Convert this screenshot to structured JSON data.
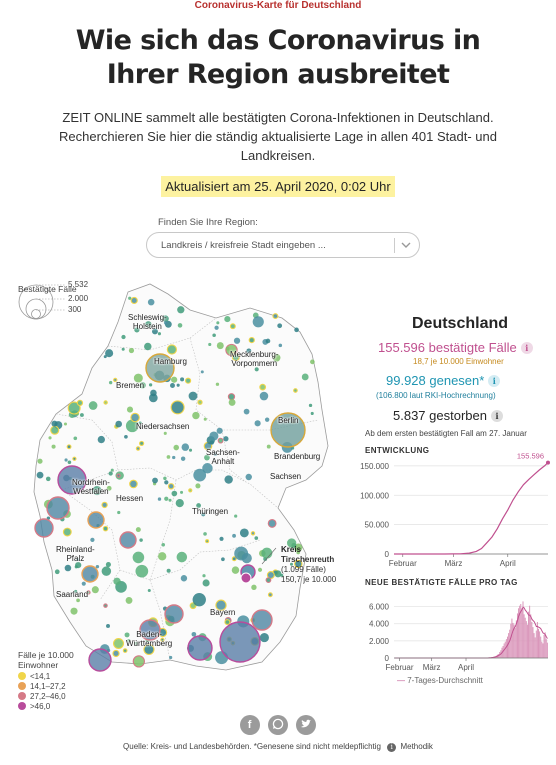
{
  "kicker": "Coronavirus-Karte für Deutschland",
  "headline": "Wie sich das Coronavirus in Ihrer Region ausbreitet",
  "intro": "ZEIT ONLINE sammelt alle bestätigten Corona-Infektionen in Deutschland. Recherchieren Sie hier die ständig aktualisierte Lage in allen 401 Stadt- und Landkreisen.",
  "updated": "Aktualisiert am 25. April 2020, 0:02 Uhr",
  "search": {
    "label": "Finden Sie Ihre Region:",
    "placeholder": "Landkreis / kreisfreie Stadt eingeben ..."
  },
  "legend": {
    "title": "Bestätigte Fälle",
    "sizes": [
      "5.532",
      "2.000",
      "300"
    ],
    "rate_title": "Fälle je 10.000 Einwohner",
    "rates": [
      {
        "label": "<14,1",
        "color": "#f0d54a"
      },
      {
        "label": "14,1–27,2",
        "color": "#e8a257"
      },
      {
        "label": "27,2–46,0",
        "color": "#d57a87"
      },
      {
        "label": ">46,0",
        "color": "#b84c9c"
      }
    ]
  },
  "map_labels": {
    "schleswig": "Schleswig-\nHolstein",
    "hamburg": "Hamburg",
    "mecklenburg": "Mecklenburg-\nVorpommern",
    "bremen": "Bremen",
    "berlin": "Berlin",
    "niedersachsen": "Niedersachsen",
    "sachsen_anhalt": "Sachsen-\nAnhalt",
    "brandenburg": "Brandenburg",
    "nrw": "Nordrhein-\nWestfalen",
    "sachsen": "Sachsen",
    "hessen": "Hessen",
    "thueringen": "Thüringen",
    "rlp": "Rheinland-\nPfalz",
    "saarland": "Saarland",
    "bayern": "Bayern",
    "bw": "Baden-\nWürttemberg"
  },
  "callout": {
    "title": "Kreis",
    "name": "Tirschenreuth",
    "cases": "(1.099 Fälle)",
    "rate": "150,7 je 10.000"
  },
  "stats": {
    "title": "Deutschland",
    "cases": "155.596 bestätigte Fälle",
    "cases_sub": "18,7  je 10.000 Einwohner",
    "recovered": "99.928 genesen*",
    "recovered_sub": "(106.800  laut RKI-Hochrechnung)",
    "deaths": "5.837 gestorben",
    "info_icon": "i",
    "colors": {
      "cases": "#c0508f",
      "recovered": "#1f95b2",
      "accent": "#c58a1e"
    }
  },
  "chart_data": [
    {
      "type": "line",
      "title": "ENTWICKLUNG",
      "subtitle": "Ab dem ersten bestätigten Fall am 27. Januar",
      "x_ticks": [
        "Februar",
        "März",
        "April"
      ],
      "y_ticks": [
        "0",
        "50.000",
        "100.000",
        "150.000"
      ],
      "ylim": [
        0,
        160000
      ],
      "end_label": "155.596",
      "x": [
        "2020-01-27",
        "2020-02-10",
        "2020-02-25",
        "2020-03-01",
        "2020-03-05",
        "2020-03-10",
        "2020-03-14",
        "2020-03-17",
        "2020-03-20",
        "2020-03-23",
        "2020-03-26",
        "2020-03-29",
        "2020-04-01",
        "2020-04-04",
        "2020-04-07",
        "2020-04-10",
        "2020-04-13",
        "2020-04-16",
        "2020-04-19",
        "2020-04-22",
        "2020-04-24"
      ],
      "values": [
        1,
        16,
        18,
        130,
        400,
        1500,
        4500,
        9300,
        19000,
        29000,
        43000,
        60000,
        75000,
        92000,
        106000,
        118000,
        127000,
        135000,
        143000,
        150000,
        155596
      ],
      "color": "#c0508f"
    },
    {
      "type": "bar",
      "title": "NEUE BESTÄTIGTE FÄLLE PRO TAG",
      "x_ticks": [
        "Februar",
        "März",
        "April"
      ],
      "y_ticks": [
        "0",
        "2.000",
        "4.000",
        "6.000"
      ],
      "ylim": [
        0,
        7000
      ],
      "series_note": "7-Tages-Durchschnitt",
      "values": [
        0,
        0,
        0,
        0,
        0,
        0,
        0,
        0,
        0,
        0,
        0,
        0,
        0,
        0,
        0,
        0,
        0,
        0,
        0,
        0,
        0,
        0,
        0,
        0,
        0,
        0,
        0,
        0,
        0,
        0,
        0,
        0,
        0,
        0,
        0,
        0,
        0,
        0,
        0,
        0,
        0,
        0,
        0,
        0,
        0,
        0,
        0,
        0,
        0,
        0,
        0,
        0,
        0,
        0,
        0,
        0,
        0,
        0,
        0,
        0,
        0,
        0,
        0,
        0,
        0,
        0,
        0,
        0,
        0,
        0,
        0,
        0,
        0,
        0,
        0,
        0,
        0,
        0,
        0,
        0,
        0,
        0,
        0,
        0,
        5,
        20,
        40,
        50,
        80,
        110,
        150,
        200,
        280,
        380,
        470,
        700,
        900,
        1200,
        1400,
        1700,
        1900,
        2200,
        2500,
        2900,
        3300,
        4000,
        4600,
        4100,
        3900,
        3500,
        4400,
        5200,
        5800,
        6100,
        6300,
        5800,
        6600,
        5100,
        4700,
        4300,
        3900,
        5400,
        6100,
        5100,
        4200,
        3600,
        2900,
        2400,
        3200,
        4200,
        3400,
        3100,
        2500,
        1900,
        1700,
        2700,
        3000,
        2200,
        1800
      ],
      "avg": [
        0,
        0,
        0,
        0,
        0,
        0,
        0,
        0,
        0,
        0,
        0,
        0,
        0,
        0,
        0,
        0,
        0,
        0,
        0,
        0,
        0,
        0,
        0,
        0,
        0,
        0,
        0,
        0,
        0,
        0,
        0,
        0,
        0,
        0,
        0,
        0,
        0,
        0,
        0,
        0,
        0,
        0,
        0,
        0,
        0,
        0,
        0,
        0,
        0,
        0,
        0,
        0,
        0,
        0,
        0,
        0,
        0,
        0,
        0,
        0,
        0,
        0,
        0,
        0,
        0,
        0,
        0,
        0,
        0,
        0,
        0,
        0,
        0,
        0,
        0,
        0,
        0,
        0,
        0,
        0,
        0,
        0,
        0,
        0,
        5,
        15,
        25,
        35,
        55,
        75,
        100,
        130,
        170,
        230,
        290,
        380,
        480,
        620,
        780,
        940,
        1110,
        1300,
        1520,
        1770,
        2050,
        2430,
        2860,
        3200,
        3460,
        3680,
        3990,
        4370,
        4870,
        5200,
        5460,
        5660,
        5940,
        5840,
        5580,
        5440,
        5240,
        5020,
        4990,
        4830,
        4540,
        4370,
        4240,
        3980,
        3660,
        3690,
        3590,
        3530,
        3420,
        3170,
        2930,
        2860,
        2740,
        2490,
        2260
      ],
      "color": "#c0508f"
    }
  ],
  "share": [
    "f",
    "w",
    "t"
  ],
  "footer": "Quelle: Kreis- und Landesbehörden. *Genesene sind nicht meldepflichtig",
  "methodik": "Methodik"
}
